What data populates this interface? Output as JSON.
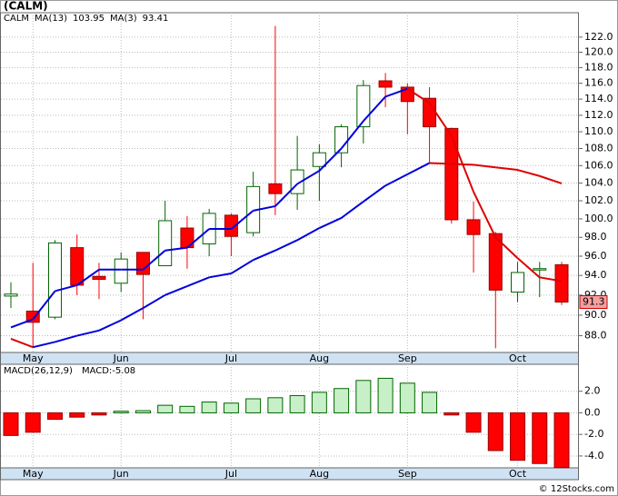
{
  "chart_data": [
    {
      "type": "candlestick",
      "title": "(CALM)",
      "symbol": "CALM",
      "log_scale": true,
      "grid": true,
      "categories": [
        null,
        "May",
        null,
        null,
        null,
        "Jun",
        null,
        null,
        null,
        null,
        "Jul",
        null,
        null,
        null,
        "Aug",
        null,
        null,
        null,
        "Sep",
        null,
        null,
        null,
        null,
        "Oct",
        null,
        null
      ],
      "open": [
        91.9,
        90.4,
        89.8,
        96.9,
        93.9,
        93.2,
        96.4,
        95.0,
        99.0,
        97.3,
        100.4,
        98.5,
        103.9,
        102.8,
        105.9,
        107.5,
        110.6,
        116.3,
        115.5,
        114.1,
        110.4,
        99.9,
        98.4,
        92.3,
        94.6,
        95.1
      ],
      "high": [
        93.3,
        95.3,
        97.7,
        98.3,
        95.3,
        96.4,
        96.4,
        102.0,
        100.3,
        101.1,
        100.6,
        105.3,
        123.5,
        109.5,
        108.5,
        110.9,
        116.4,
        117.3,
        116.0,
        115.5,
        110.5,
        101.9,
        98.6,
        95.4,
        95.4,
        95.4
      ],
      "low": [
        90.7,
        86.9,
        89.6,
        92.0,
        91.6,
        92.3,
        89.6,
        95.0,
        94.7,
        96.0,
        96.0,
        98.1,
        100.4,
        101.0,
        102.0,
        105.8,
        108.6,
        113.0,
        109.7,
        106.3,
        99.5,
        94.3,
        86.8,
        91.3,
        91.8,
        91.0
      ],
      "close": [
        92.1,
        89.3,
        97.4,
        93.0,
        93.6,
        95.7,
        94.1,
        99.8,
        96.9,
        100.6,
        98.1,
        103.6,
        102.8,
        105.5,
        107.5,
        110.6,
        115.7,
        115.5,
        113.7,
        110.6,
        99.9,
        98.3,
        92.5,
        94.3,
        94.7,
        91.3
      ],
      "up_color": "#006400",
      "down_color": "#ff0000",
      "series": [
        {
          "name": "MA(13)",
          "up_color": "#0000dd",
          "down_color": "#dd0000",
          "values": [
            87.7,
            86.9,
            87.4,
            88.0,
            88.5,
            89.5,
            90.7,
            92.0,
            92.9,
            93.8,
            94.2,
            95.6,
            96.6,
            97.7,
            99.0,
            100.1,
            101.9,
            103.7,
            105.0,
            106.3,
            106.2,
            106.1,
            105.8,
            105.5,
            104.8,
            103.95
          ]
        },
        {
          "name": "MA(3)",
          "up_color": "#0000dd",
          "down_color": "#dd0000",
          "values": [
            88.8,
            89.6,
            92.4,
            93.0,
            94.6,
            94.6,
            94.6,
            96.6,
            96.9,
            98.9,
            98.9,
            100.9,
            101.4,
            103.9,
            105.4,
            108.0,
            111.3,
            114.3,
            115.3,
            113.5,
            109.5,
            103.0,
            98.0,
            95.8,
            93.8,
            93.41
          ]
        }
      ],
      "ylim": [
        86.4,
        125.3
      ],
      "yticks": [
        {
          "value": 88,
          "label": "88.0"
        },
        {
          "value": 90,
          "label": "90.0"
        },
        {
          "value": 92,
          "label": "92.0"
        },
        {
          "value": 94,
          "label": "94.0"
        },
        {
          "value": 96,
          "label": "96.0"
        },
        {
          "value": 98,
          "label": "98.0"
        },
        {
          "value": 100,
          "label": "100.0"
        },
        {
          "value": 102,
          "label": "102.0"
        },
        {
          "value": 104,
          "label": "104.0"
        },
        {
          "value": 106,
          "label": "106.0"
        },
        {
          "value": 108,
          "label": "108.0"
        },
        {
          "value": 110,
          "label": "110.0"
        },
        {
          "value": 112,
          "label": "112.0"
        },
        {
          "value": 114,
          "label": "114.0"
        },
        {
          "value": 116,
          "label": "116.0"
        },
        {
          "value": 118,
          "label": "118.0"
        },
        {
          "value": 120,
          "label": "120.0"
        },
        {
          "value": 122,
          "label": "122.0"
        }
      ]
    },
    {
      "type": "bar",
      "legend": [
        "MACD(26,12,9)",
        "MACD:-5.08"
      ],
      "values": [
        -2.1,
        -1.8,
        -0.6,
        -0.4,
        -0.2,
        0.15,
        0.2,
        0.7,
        0.6,
        1.0,
        0.9,
        1.3,
        1.4,
        1.6,
        1.9,
        2.25,
        3.0,
        3.2,
        2.75,
        1.9,
        -0.2,
        -1.8,
        -3.5,
        -4.4,
        -4.7,
        -5.08
      ],
      "pos_color": "#006400",
      "neg_color": "#ff0000",
      "ylim": [
        -5.1,
        4.5
      ],
      "yticks": [
        {
          "value": 2,
          "label": "2.0"
        },
        {
          "value": 0,
          "label": "0.0"
        },
        {
          "value": -2,
          "label": "-2.0"
        },
        {
          "value": -4,
          "label": "-4.0"
        }
      ]
    }
  ],
  "footer": "© 12Stocks.com"
}
